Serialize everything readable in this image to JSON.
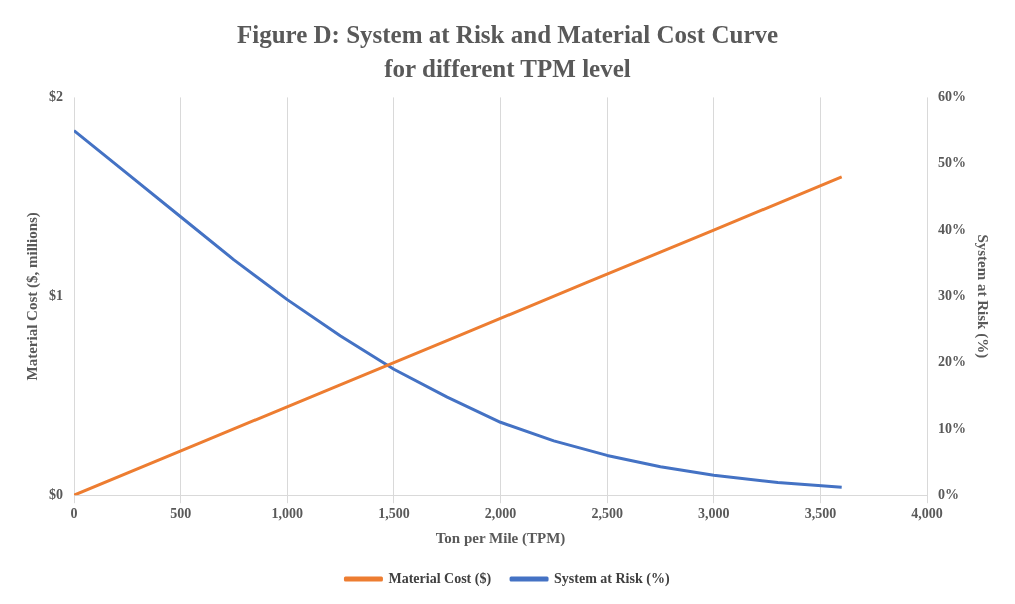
{
  "chart_data": {
    "type": "line",
    "title": "Figure D: System at Risk and Material Cost Curve for different TPM level",
    "xlabel": "Ton per Mile (TPM)",
    "ylabel": "Material Cost ($, millions)",
    "y2label": "System at Risk (%)",
    "xlim": [
      0,
      4000
    ],
    "xticks": [
      0,
      500,
      {
        "value": 1000,
        "label": "1,000"
      },
      {
        "value": 1500,
        "label": "1,500"
      },
      {
        "value": 2000,
        "label": "2,000"
      },
      {
        "value": 2500,
        "label": "2,500"
      },
      {
        "value": 3000,
        "label": "3,000"
      },
      {
        "value": 3500,
        "label": "3,500"
      },
      {
        "value": 4000,
        "label": "4,000"
      }
    ],
    "ylim": [
      0,
      2
    ],
    "yticks": [
      {
        "value": 0,
        "label": "$0"
      },
      {
        "value": 1,
        "label": "$1"
      },
      {
        "value": 2,
        "label": "$2"
      }
    ],
    "y2lim": [
      0,
      60
    ],
    "y2ticks": [
      {
        "value": 0,
        "label": "0%"
      },
      {
        "value": 10,
        "label": "10%"
      },
      {
        "value": 20,
        "label": "20%"
      },
      {
        "value": 30,
        "label": "30%"
      },
      {
        "value": 40,
        "label": "40%"
      },
      {
        "value": 50,
        "label": "50%"
      },
      {
        "value": 60,
        "label": "60%"
      }
    ],
    "grid": "x",
    "legend": "bottom",
    "marker": "none",
    "line_style": "solid",
    "series": [
      {
        "name": "Material Cost ($)",
        "color": "#ed7d31",
        "x": [
          0,
          600,
          1200,
          1800,
          2400,
          3000,
          3600
        ],
        "values": [
          0,
          0.267,
          0.533,
          0.8,
          1.067,
          1.333,
          1.6
        ]
      },
      {
        "name": "System at Risk (%)",
        "color": "#4472c4",
        "axis": "y2",
        "x": [
          0,
          250,
          500,
          750,
          1000,
          1250,
          1500,
          1750,
          2000,
          2250,
          2500,
          2750,
          3000,
          3300,
          3600
        ],
        "values": [
          55,
          48.5,
          42,
          35.5,
          29.5,
          24,
          19,
          14.8,
          11,
          8.2,
          6,
          4.3,
          3,
          1.9,
          1.2
        ]
      }
    ]
  }
}
